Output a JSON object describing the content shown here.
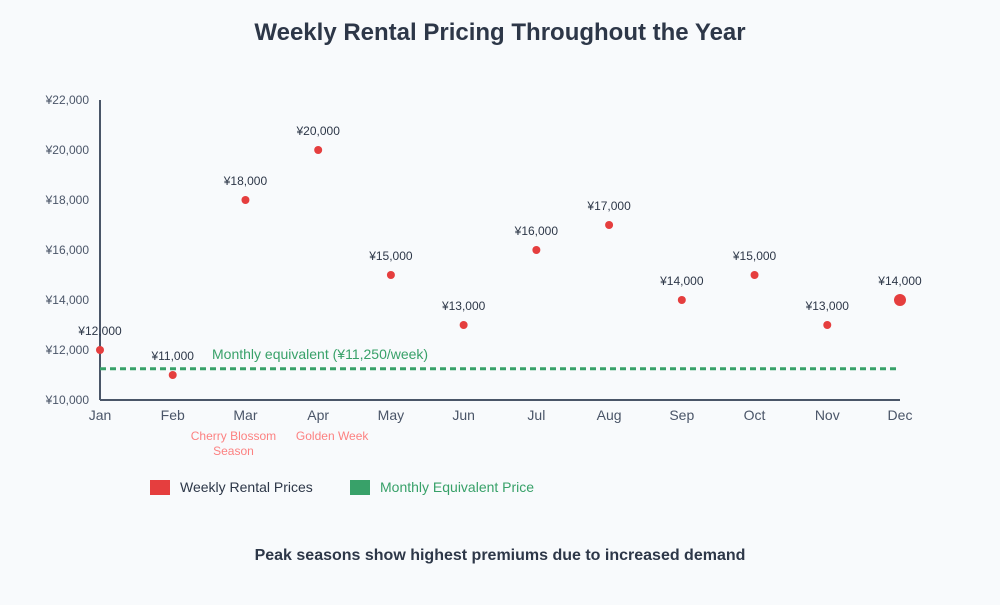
{
  "chart_data": {
    "type": "scatter",
    "title": "Weekly Rental Pricing Throughout the Year",
    "footnote": "Peak seasons show highest premiums due to increased demand",
    "categories": [
      "Jan",
      "Feb",
      "Mar",
      "Apr",
      "May",
      "Jun",
      "Jul",
      "Aug",
      "Sep",
      "Oct",
      "Nov",
      "Dec"
    ],
    "series": [
      {
        "name": "Weekly Rental Prices",
        "color": "#e53e3e",
        "values": [
          12000,
          11000,
          18000,
          20000,
          15000,
          13000,
          16000,
          17000,
          14000,
          15000,
          13000,
          14000
        ],
        "labels": [
          "¥12,000",
          "¥11,000",
          "¥18,000",
          "¥20,000",
          "¥15,000",
          "¥13,000",
          "¥16,000",
          "¥17,000",
          "¥14,000",
          "¥15,000",
          "¥13,000",
          "¥14,000"
        ],
        "highlighted_index": 11
      }
    ],
    "reference_line": {
      "name": "Monthly Equivalent Price",
      "value": 11250,
      "label": "Monthly equivalent (¥11,250/week)",
      "color": "#38a169",
      "style": "dashed"
    },
    "annotations": [
      {
        "category": "Mar",
        "lines": [
          "Cherry Blossom",
          "Season"
        ]
      },
      {
        "category": "Apr",
        "lines": [
          "Golden Week"
        ]
      }
    ],
    "ylim": [
      10000,
      22000
    ],
    "yticks": [
      10000,
      12000,
      14000,
      16000,
      18000,
      20000,
      22000
    ],
    "ytick_labels": [
      "¥10,000",
      "¥12,000",
      "¥14,000",
      "¥16,000",
      "¥18,000",
      "¥20,000",
      "¥22,000"
    ],
    "grid": false,
    "legend": {
      "placement": "bottom-left",
      "entries": [
        "Weekly Rental Prices",
        "Monthly Equivalent Price"
      ]
    },
    "annotation_color": "#fc8181"
  }
}
